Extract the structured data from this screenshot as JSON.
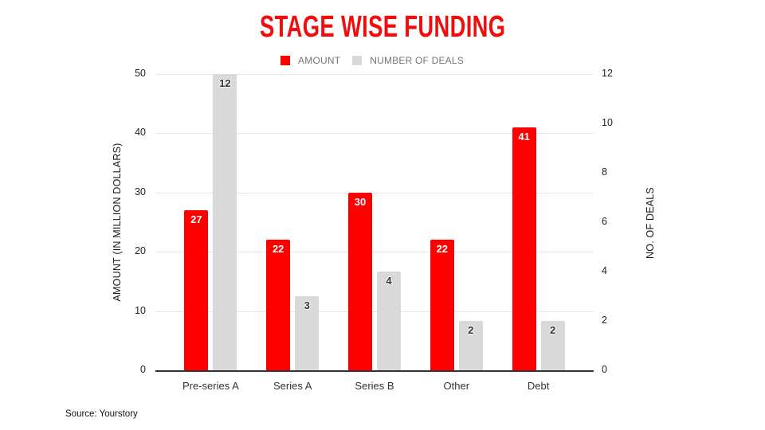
{
  "page": {
    "source": "Source: Yourstory"
  },
  "colors": {
    "title_red": "#f20c0c",
    "amount_red": "#ff0000",
    "deals_gray": "#d9d9d9",
    "gridline": "#e6e6e6",
    "axis_line": "#333333",
    "legend_text": "#757575"
  },
  "chart_data": {
    "type": "bar",
    "title": "STAGE WISE FUNDING",
    "categories": [
      "Pre-series A",
      "Series A",
      "Series B",
      "Other",
      "Debt"
    ],
    "series": [
      {
        "name": "AMOUNT",
        "axis": "left",
        "color": "#ff0000",
        "values": [
          27,
          22,
          30,
          22,
          41
        ]
      },
      {
        "name": "NUMBER OF DEALS",
        "axis": "right",
        "color": "#d9d9d9",
        "values": [
          12,
          3,
          4,
          2,
          2
        ]
      }
    ],
    "axes": {
      "left": {
        "label": "AMOUNT (IN MILLION DOLLARS)",
        "ticks": [
          0,
          10,
          20,
          30,
          40,
          50
        ],
        "ylim": [
          0,
          50
        ]
      },
      "right": {
        "label": "NO. OF DEALS",
        "ticks": [
          0,
          2,
          4,
          6,
          8,
          10,
          12
        ],
        "ylim": [
          0,
          12
        ]
      }
    },
    "legend_position": "top",
    "grid": true,
    "data_labels": true
  }
}
